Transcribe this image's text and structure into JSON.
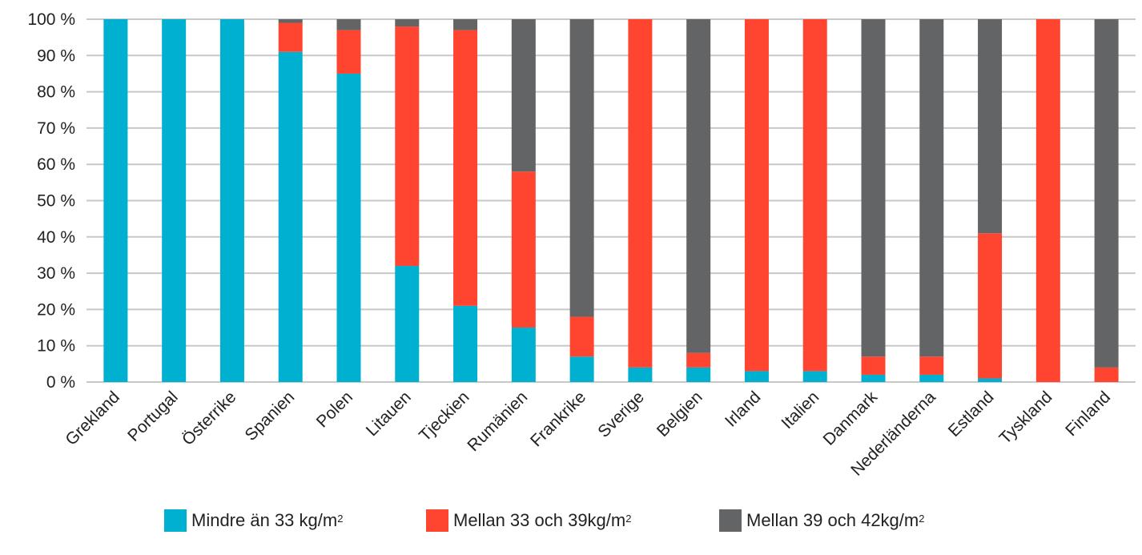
{
  "chart_data": {
    "type": "bar",
    "stacked": true,
    "categories": [
      "Grekland",
      "Portugal",
      "Österrike",
      "Spanien",
      "Polen",
      "Litauen",
      "Tjeckien",
      "Rumänien",
      "Frankrike",
      "Sverige",
      "Belgien",
      "Irland",
      "Italien",
      "Danmark",
      "Nederländerna",
      "Estland",
      "Tyskland",
      "Finland"
    ],
    "series": [
      {
        "name": "Mindre än 33 kg/m",
        "name_sup": "2",
        "color": "#00b0d0",
        "values": [
          100,
          100,
          100,
          91,
          85,
          32,
          21,
          15,
          7,
          4,
          4,
          3,
          3,
          2,
          2,
          1,
          0,
          0
        ]
      },
      {
        "name": "Mellan 33 och 39kg/m",
        "name_sup": "2",
        "color": "#ff4530",
        "values": [
          0,
          0,
          0,
          8,
          12,
          66,
          76,
          43,
          11,
          96,
          4,
          97,
          97,
          5,
          5,
          40,
          100,
          4
        ]
      },
      {
        "name": "Mellan 39 och 42kg/m",
        "name_sup": "2",
        "color": "#636466",
        "values": [
          0,
          0,
          0,
          1,
          3,
          2,
          3,
          42,
          82,
          0,
          92,
          0,
          0,
          93,
          93,
          59,
          0,
          96
        ]
      }
    ],
    "yticks": [
      "0 %",
      "10 %",
      "20 %",
      "30 %",
      "40 %",
      "50 %",
      "60 %",
      "70 %",
      "80 %",
      "90 %",
      "100 %"
    ],
    "ylim": [
      0,
      100
    ],
    "grid": true,
    "legend": "bottom"
  }
}
